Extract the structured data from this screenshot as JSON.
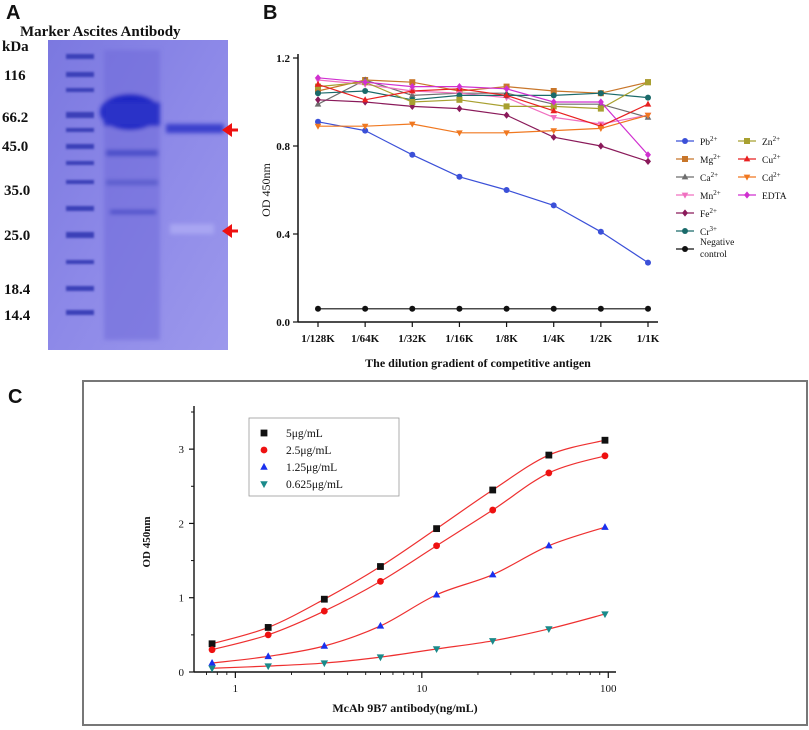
{
  "panels": {
    "a": "A",
    "b": "B",
    "c": "C"
  },
  "gel": {
    "header": "Marker Ascites Antibody",
    "unit": "kDa",
    "markers": [
      "116",
      "66.2",
      "45.0",
      "35.0",
      "25.0",
      "18.4",
      "14.4"
    ],
    "colors": {
      "gel_bg": "#8a86e6",
      "band": "#2b32c8",
      "arrow": "#ee1111"
    }
  },
  "chart_data": [
    {
      "id": "B",
      "type": "line",
      "title": "",
      "xlabel": "The dilution gradient of competitive antigen",
      "ylabel": "OD 450nm",
      "categories": [
        "1/128K",
        "1/64K",
        "1/32K",
        "1/16K",
        "1/8K",
        "1/4K",
        "1/2K",
        "1/1K"
      ],
      "ylim": [
        0,
        1.2
      ],
      "yticks": [
        "0.0",
        "0.4",
        "0.8",
        "1.2"
      ],
      "series": [
        {
          "name": "Pb",
          "sup": "2+",
          "color": "#3b50d8",
          "marker": "circle",
          "values": [
            0.91,
            0.87,
            0.76,
            0.66,
            0.6,
            0.53,
            0.41,
            0.27
          ]
        },
        {
          "name": "Mg",
          "sup": "2+",
          "color": "#c8762a",
          "marker": "square",
          "values": [
            1.05,
            1.1,
            1.09,
            1.05,
            1.07,
            1.05,
            1.04,
            1.09
          ]
        },
        {
          "name": "Ca",
          "sup": "2+",
          "color": "#6e6e6e",
          "marker": "triangle",
          "values": [
            0.99,
            1.1,
            1.03,
            1.04,
            1.04,
            0.99,
            0.99,
            0.93
          ]
        },
        {
          "name": "Mn",
          "sup": "2+",
          "color": "#f070c0",
          "marker": "tri-down",
          "values": [
            1.1,
            1.08,
            1.05,
            1.04,
            1.02,
            0.93,
            0.9,
            0.94
          ]
        },
        {
          "name": "Fe",
          "sup": "2+",
          "color": "#8a1a5a",
          "marker": "diamond",
          "values": [
            1.01,
            1.0,
            0.98,
            0.97,
            0.94,
            0.84,
            0.8,
            0.73
          ]
        },
        {
          "name": "Cr",
          "sup": "3+",
          "color": "#1a6a6a",
          "marker": "circle",
          "values": [
            1.04,
            1.05,
            1.01,
            1.03,
            1.03,
            1.03,
            1.04,
            1.02
          ]
        },
        {
          "name": "Zn",
          "sup": "2+",
          "color": "#a8a030",
          "marker": "square",
          "values": [
            1.07,
            1.09,
            1.0,
            1.01,
            0.98,
            0.98,
            0.97,
            1.09
          ]
        },
        {
          "name": "Cu",
          "sup": "2+",
          "color": "#e82020",
          "marker": "triangle",
          "values": [
            1.08,
            1.01,
            1.05,
            1.06,
            1.03,
            0.96,
            0.89,
            0.99
          ]
        },
        {
          "name": "Cd",
          "sup": "2+",
          "color": "#f07820",
          "marker": "tri-down",
          "values": [
            0.89,
            0.89,
            0.9,
            0.86,
            0.86,
            0.87,
            0.88,
            0.94
          ]
        },
        {
          "name": "EDTA",
          "sup": "",
          "color": "#d030d0",
          "marker": "diamond",
          "values": [
            1.11,
            1.09,
            1.07,
            1.07,
            1.06,
            1.0,
            1.0,
            0.76
          ]
        },
        {
          "name": "Negative control",
          "sup": "",
          "color": "#111111",
          "marker": "circle",
          "values": [
            0.06,
            0.06,
            0.06,
            0.06,
            0.06,
            0.06,
            0.06,
            0.06
          ]
        }
      ],
      "legend": "right"
    },
    {
      "id": "C",
      "type": "scatter",
      "title": "",
      "xlabel": "McAb 9B7 antibody(ng/mL)",
      "ylabel": "OD 450nm",
      "xscale": "log",
      "xlim": [
        0.6,
        110
      ],
      "ylim": [
        0,
        3.5
      ],
      "xticks": [
        "1",
        "10",
        "100"
      ],
      "yticks": [
        "0",
        "1",
        "2",
        "3"
      ],
      "x": [
        0.75,
        1.5,
        3,
        6,
        12,
        24,
        48,
        96
      ],
      "fit_color": "#ee3030",
      "series": [
        {
          "name": "5μg/mL",
          "color": "#111111",
          "marker": "square",
          "values": [
            0.38,
            0.6,
            0.98,
            1.42,
            1.93,
            2.45,
            2.92,
            3.12
          ]
        },
        {
          "name": "2.5μg/mL",
          "color": "#ee1111",
          "marker": "circle",
          "values": [
            0.3,
            0.5,
            0.82,
            1.22,
            1.7,
            2.18,
            2.68,
            2.91
          ]
        },
        {
          "name": "1.25μg/mL",
          "color": "#1a30ee",
          "marker": "triangle",
          "values": [
            0.12,
            0.21,
            0.35,
            0.62,
            1.04,
            1.31,
            1.7,
            1.95
          ]
        },
        {
          "name": "0.625μg/mL",
          "color": "#1a8a8a",
          "marker": "tri-down",
          "values": [
            0.05,
            0.08,
            0.12,
            0.2,
            0.31,
            0.42,
            0.58,
            0.78
          ]
        }
      ],
      "legend": "top-left"
    }
  ]
}
